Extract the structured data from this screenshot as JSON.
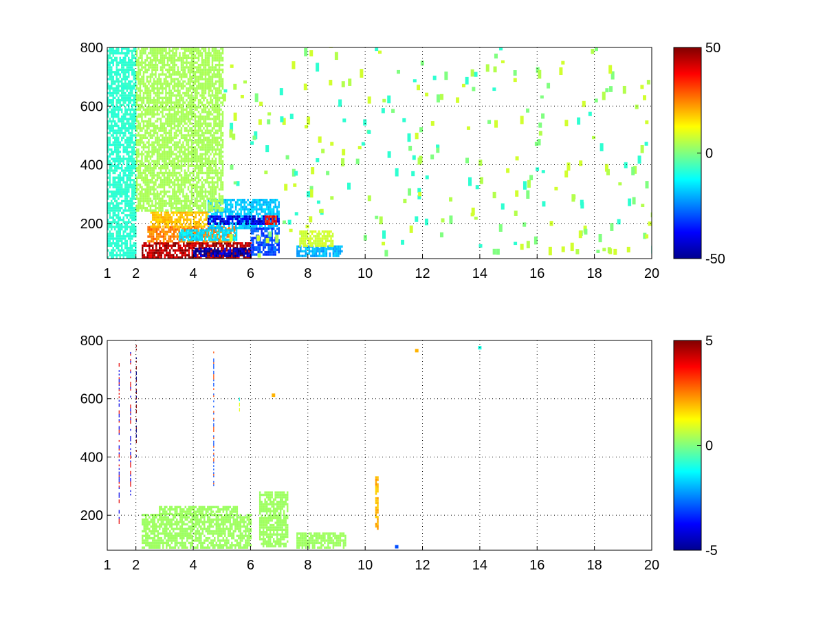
{
  "chart_data": [
    {
      "type": "heatmap",
      "title": "",
      "xlabel": "",
      "ylabel": "",
      "xlim": [
        1,
        20
      ],
      "ylim": [
        80,
        800
      ],
      "x_ticks": [
        1,
        2,
        4,
        6,
        8,
        10,
        12,
        14,
        16,
        18,
        20
      ],
      "y_ticks": [
        200,
        400,
        600,
        800
      ],
      "grid": true,
      "colormap": "jet",
      "colorbar": {
        "min": -50,
        "max": 50,
        "ticks": [
          -50,
          0,
          50
        ]
      },
      "regions": [
        {
          "x": [
            2.2,
            6.0
          ],
          "y": [
            80,
            135
          ],
          "value": 45
        },
        {
          "x": [
            4.0,
            6.0
          ],
          "y": [
            85,
            115
          ],
          "value": -45
        },
        {
          "x": [
            2.4,
            5.5
          ],
          "y": [
            135,
            185
          ],
          "value": 25
        },
        {
          "x": [
            3.5,
            5.5
          ],
          "y": [
            140,
            180
          ],
          "value": -15
        },
        {
          "x": [
            2.5,
            4.5
          ],
          "y": [
            185,
            240
          ],
          "value": 18
        },
        {
          "x": [
            4.5,
            7.0
          ],
          "y": [
            180,
            280
          ],
          "value": -18
        },
        {
          "x": [
            4.5,
            7.0
          ],
          "y": [
            195,
            220
          ],
          "value": -40
        },
        {
          "x": [
            6.0,
            7.0
          ],
          "y": [
            90,
            180
          ],
          "value": -30
        },
        {
          "x": [
            6.5,
            6.9
          ],
          "y": [
            195,
            225
          ],
          "value": 35
        },
        {
          "x": [
            7.6,
            9.2
          ],
          "y": [
            85,
            120
          ],
          "value": -20
        },
        {
          "x": [
            7.7,
            8.9
          ],
          "y": [
            120,
            170
          ],
          "value": 8
        },
        {
          "x": [
            1.0,
            2.0
          ],
          "y": [
            80,
            800
          ],
          "value": -8
        },
        {
          "x": [
            2.0,
            5.0
          ],
          "y": [
            240,
            800
          ],
          "value": 4
        }
      ],
      "scattered_cells": {
        "x": [
          5.0,
          20.0
        ],
        "y": [
          80,
          800
        ],
        "values": [
          -8,
          0,
          5,
          8
        ]
      }
    },
    {
      "type": "heatmap",
      "title": "",
      "xlabel": "",
      "ylabel": "",
      "xlim": [
        1,
        20
      ],
      "ylim": [
        80,
        800
      ],
      "x_ticks": [
        1,
        2,
        4,
        6,
        8,
        10,
        12,
        14,
        16,
        18,
        20
      ],
      "y_ticks": [
        200,
        400,
        600,
        800
      ],
      "grid": true,
      "colormap": "jet",
      "colorbar": {
        "min": -5,
        "max": 5,
        "ticks": [
          -5,
          0,
          5
        ]
      },
      "regions": [
        {
          "x": [
            2.2,
            6.0
          ],
          "y": [
            85,
            200
          ],
          "value": 0.3
        },
        {
          "x": [
            2.8,
            5.5
          ],
          "y": [
            200,
            230
          ],
          "value": 0.3
        },
        {
          "x": [
            6.3,
            7.3
          ],
          "y": [
            90,
            280
          ],
          "value": 0.3
        },
        {
          "x": [
            7.6,
            9.3
          ],
          "y": [
            85,
            140
          ],
          "value": 0.3
        },
        {
          "x": [
            10.35,
            10.45
          ],
          "y": [
            150,
            330
          ],
          "value": 2
        }
      ],
      "vertical_streaks": [
        {
          "x": 1.4,
          "y": [
            170,
            720
          ],
          "value": 4
        },
        {
          "x": 1.8,
          "y": [
            250,
            760
          ],
          "value": -4
        },
        {
          "x": 2.0,
          "y": [
            400,
            790
          ],
          "value": 5
        },
        {
          "x": 4.7,
          "y": [
            300,
            780
          ],
          "value": 3
        },
        {
          "x": 5.6,
          "y": [
            550,
            600
          ],
          "value": -1
        }
      ],
      "points": [
        {
          "x": 11.8,
          "y": 765,
          "value": 2
        },
        {
          "x": 14.0,
          "y": 775,
          "value": -1
        },
        {
          "x": 6.8,
          "y": 612,
          "value": 2
        },
        {
          "x": 11.1,
          "y": 92,
          "value": -3
        }
      ]
    }
  ]
}
